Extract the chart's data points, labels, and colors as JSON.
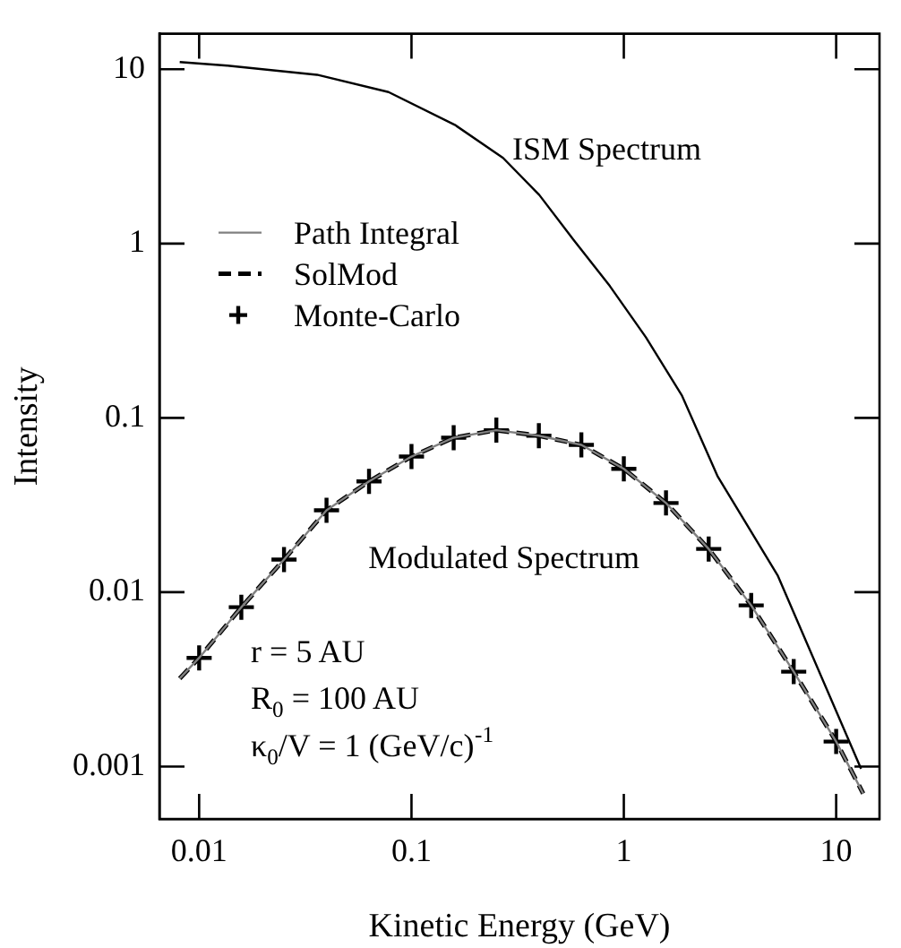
{
  "chart_data": {
    "type": "line",
    "xlabel": "Kinetic Energy (GeV)",
    "ylabel": "Intensity",
    "log": "xy",
    "grid": false,
    "legend": "top left",
    "xlim": [
      0.0065,
      16
    ],
    "ylim": [
      0.0005,
      16
    ],
    "xticks": [
      0.01,
      0.1,
      1,
      10
    ],
    "yticks": [
      0.001,
      0.01,
      0.1,
      1,
      10
    ],
    "series": [
      {
        "color": "#000000",
        "line_style": "solid",
        "x": [
          0.0081,
          0.0136,
          0.0359,
          0.078,
          0.16,
          0.27,
          0.4,
          0.58,
          0.86,
          1.27,
          1.88,
          2.77,
          5.3,
          13.1
        ],
        "values": [
          11,
          10.5,
          9.3,
          7.4,
          4.8,
          3.1,
          1.9,
          1.05,
          0.57,
          0.29,
          0.134,
          0.046,
          0.0125,
          0.00097
        ]
      },
      {
        "name": "Path Integral",
        "color": "#808080",
        "line_style": "solid",
        "x": [
          0.0081,
          0.01,
          0.0158,
          0.0251,
          0.0398,
          0.0631,
          0.1,
          0.158,
          0.251,
          0.398,
          0.631,
          1,
          1.58,
          2.51,
          3.98,
          6.31,
          10,
          13.4
        ],
        "values": [
          0.0032,
          0.0042,
          0.0082,
          0.0154,
          0.0295,
          0.0432,
          0.06,
          0.077,
          0.085,
          0.079,
          0.07,
          0.051,
          0.0325,
          0.0177,
          0.0084,
          0.0035,
          0.00139,
          0.0007
        ]
      },
      {
        "name": "SolMod",
        "color": "#000000",
        "line_style": "dashed",
        "x": [
          0.0081,
          0.01,
          0.0158,
          0.0251,
          0.0398,
          0.0631,
          0.1,
          0.158,
          0.251,
          0.398,
          0.631,
          1,
          1.58,
          2.51,
          3.98,
          6.31,
          10,
          13.4
        ],
        "values": [
          0.0032,
          0.0042,
          0.0082,
          0.0154,
          0.0295,
          0.0432,
          0.06,
          0.077,
          0.085,
          0.079,
          0.07,
          0.051,
          0.0325,
          0.0177,
          0.0084,
          0.0035,
          0.00139,
          0.0007
        ]
      },
      {
        "name": "Monte-Carlo",
        "type": "scatter",
        "marker": "cross",
        "color": "#000000",
        "x": [
          0.01,
          0.0158,
          0.0251,
          0.0398,
          0.0631,
          0.1,
          0.158,
          0.251,
          0.398,
          0.631,
          1,
          1.58,
          2.51,
          3.98,
          6.31,
          10
        ],
        "values": [
          0.0042,
          0.0082,
          0.0154,
          0.0295,
          0.0432,
          0.06,
          0.077,
          0.085,
          0.079,
          0.07,
          0.051,
          0.0325,
          0.0177,
          0.0084,
          0.0035,
          0.00139
        ]
      }
    ],
    "annotations": [
      "ISM Spectrum",
      "Modulated Spectrum",
      "r = 5 AU",
      "R$_{0}$ = 100 AU",
      "κ$_{0}$/V = 1 (GeV/c)$^{-1}$"
    ]
  }
}
